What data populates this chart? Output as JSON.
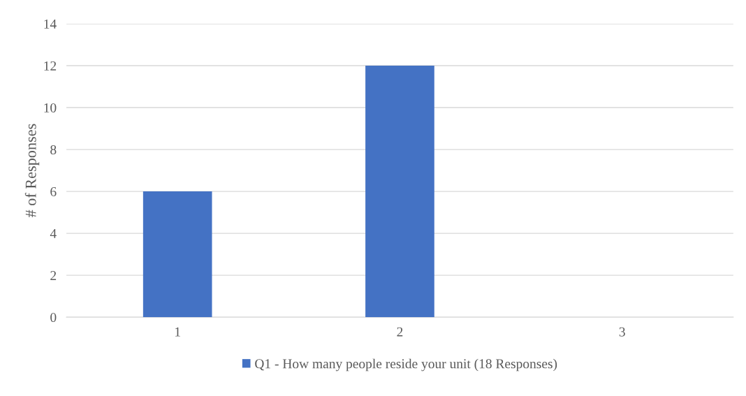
{
  "chart_data": {
    "type": "bar",
    "ylabel": "# of Responses",
    "categories": [
      "1",
      "2",
      "3"
    ],
    "series": [
      {
        "name": "Q1 - How many people reside your unit (18 Responses)",
        "color": "#4472c4",
        "values": [
          6,
          12,
          0
        ]
      }
    ],
    "ylim": [
      0,
      14
    ],
    "yticks": [
      0,
      2,
      4,
      6,
      8,
      10,
      12,
      14
    ],
    "grid": "y",
    "legend": "bottom"
  }
}
